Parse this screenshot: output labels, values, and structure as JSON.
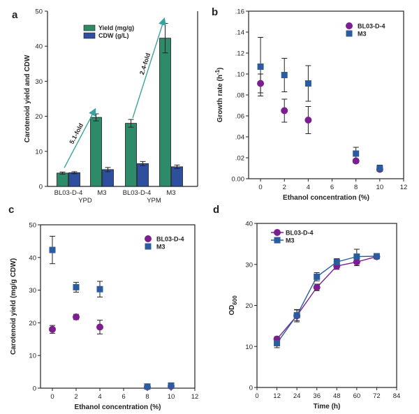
{
  "colors": {
    "yield": "#2e8b6a",
    "cdw": "#2d4f9e",
    "bl03": "#7b1f8f",
    "m3": "#2b5d9e",
    "arrow": "#3aa3a0"
  },
  "chart_data": [
    {
      "panel": "a",
      "type": "bar",
      "ylabel": "Carotenoid yield and CDW",
      "ylim": [
        0,
        50
      ],
      "yticks": [
        0,
        10,
        20,
        30,
        40,
        50
      ],
      "categories": [
        "BL03-D-4",
        "M3",
        "BL03-D-4",
        "M3"
      ],
      "groups": [
        {
          "label": "YPD",
          "categories": [
            0,
            1
          ]
        },
        {
          "label": "YPM",
          "categories": [
            2,
            3
          ]
        }
      ],
      "series": [
        {
          "name": "Yield (mg/g)",
          "values": [
            3.8,
            19.7,
            18.0,
            42.3
          ],
          "errors": [
            0.3,
            1.0,
            1.1,
            4.2
          ]
        },
        {
          "name": "CDW (g/L)",
          "values": [
            3.9,
            4.8,
            6.5,
            5.6
          ],
          "errors": [
            0.3,
            0.6,
            0.6,
            0.5
          ]
        }
      ],
      "annotations": [
        {
          "text": "5.1-fold",
          "from_category": 0,
          "to_category": 1
        },
        {
          "text": "2.4-fold",
          "from_category": 2,
          "to_category": 3
        }
      ],
      "legend": "top-center"
    },
    {
      "panel": "b",
      "type": "scatter",
      "xlabel": "Ethanol concentration (%)",
      "ylabel": "Growth rate (h",
      "ylabel_sup": "-1",
      "ylabel_end": ")",
      "xlim": [
        -1,
        12
      ],
      "ylim": [
        0,
        0.16
      ],
      "xticks": [
        0,
        2,
        4,
        6,
        8,
        10,
        12
      ],
      "xticklabels": [
        "0",
        "2",
        "4",
        "6",
        "8",
        "10",
        "12"
      ],
      "yticks": [
        0,
        0.02,
        0.04,
        0.06,
        0.08,
        0.1,
        0.12,
        0.14,
        0.16
      ],
      "yticklabels": [
        "0.00",
        ".02",
        ".04",
        ".06",
        ".08",
        ".10",
        ".12",
        ".14",
        ".16"
      ],
      "series": [
        {
          "name": "BL03-D-4",
          "marker": "circle",
          "x": [
            0,
            2,
            4,
            8,
            10
          ],
          "y": [
            0.091,
            0.065,
            0.056,
            0.017,
            0.009
          ],
          "err": [
            0.009,
            0.011,
            0.013,
            0.002,
            0.002
          ]
        },
        {
          "name": "M3",
          "marker": "square",
          "x": [
            0,
            2,
            4,
            8,
            10
          ],
          "y": [
            0.107,
            0.099,
            0.091,
            0.024,
            0.01
          ],
          "err": [
            0.028,
            0.016,
            0.017,
            0.006,
            0.003
          ]
        }
      ],
      "legend": "top-right"
    },
    {
      "panel": "c",
      "type": "scatter",
      "xlabel": "Ethanol concentration (%)",
      "ylabel": "Carotenoid yield (mg/g CDW)",
      "xlim": [
        -1,
        12
      ],
      "ylim": [
        0,
        50
      ],
      "xticks": [
        0,
        2,
        4,
        6,
        8,
        10,
        12
      ],
      "xticklabels": [
        "0",
        "2",
        "4",
        "6",
        "8",
        "10",
        "12"
      ],
      "yticks": [
        0,
        10,
        20,
        30,
        40,
        50
      ],
      "yticklabels": [
        "0",
        "10",
        "20",
        "30",
        "40",
        "50"
      ],
      "series": [
        {
          "name": "BL03-D-4",
          "marker": "circle",
          "x": [
            0,
            2,
            4,
            8,
            10
          ],
          "y": [
            18.0,
            21.8,
            18.7,
            0.4,
            0.6
          ],
          "err": [
            1.2,
            0.8,
            2.1,
            0.2,
            0.2
          ]
        },
        {
          "name": "M3",
          "marker": "square",
          "x": [
            0,
            2,
            4,
            8,
            10
          ],
          "y": [
            42.3,
            30.9,
            30.3,
            0.5,
            0.8
          ],
          "err": [
            4.2,
            1.5,
            2.4,
            0.2,
            0.2
          ]
        }
      ],
      "legend": "top-right"
    },
    {
      "panel": "d",
      "type": "line",
      "xlabel": "Time (h)",
      "ylabel": "OD",
      "ylabel_sub": "600",
      "xlim": [
        0,
        84
      ],
      "ylim": [
        0,
        40
      ],
      "xticks": [
        0,
        12,
        24,
        36,
        48,
        60,
        72,
        84
      ],
      "xticklabels": [
        "0",
        "12",
        "24",
        "36",
        "48",
        "60",
        "72",
        "84"
      ],
      "yticks": [
        0,
        10,
        20,
        30,
        40
      ],
      "yticklabels": [
        "0",
        "10",
        "20",
        "30",
        "40"
      ],
      "series": [
        {
          "name": "BL03-D-4",
          "marker": "circle",
          "x": [
            12,
            24,
            36,
            48,
            60,
            72
          ],
          "y": [
            11.8,
            17.5,
            24.4,
            29.6,
            30.6,
            31.9
          ],
          "err": [
            0.6,
            1.5,
            0.8,
            0.8,
            0.9,
            0.5
          ]
        },
        {
          "name": "M3",
          "marker": "square",
          "x": [
            12,
            24,
            36,
            48,
            60,
            72
          ],
          "y": [
            10.8,
            17.6,
            27.0,
            30.6,
            31.9,
            32.0
          ],
          "err": [
            1.1,
            1.3,
            1.0,
            0.8,
            1.8,
            0.6
          ]
        }
      ],
      "legend": "top-left"
    }
  ]
}
